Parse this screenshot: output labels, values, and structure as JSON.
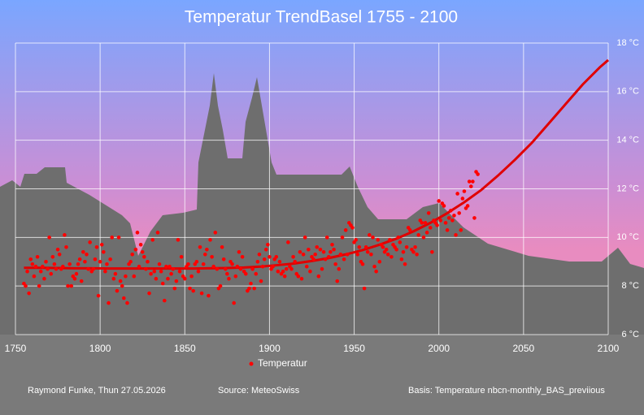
{
  "chart_data": {
    "type": "scatter",
    "title": "Temperatur  TrendBasel 1755 - 2100",
    "xlim": [
      1750,
      2100
    ],
    "xticks": [
      1750,
      1800,
      1850,
      1900,
      1950,
      2000,
      2050,
      2100
    ],
    "ylim": [
      6,
      18
    ],
    "yticks": [
      {
        "value": 6,
        "label": "6 °C"
      },
      {
        "value": 8,
        "label": "8 °C"
      },
      {
        "value": 10,
        "label": "10 °C"
      },
      {
        "value": 12,
        "label": "12 °C"
      },
      {
        "value": 14,
        "label": "14 °C"
      },
      {
        "value": 16,
        "label": "16 °C"
      },
      {
        "value": 18,
        "label": "18 °C"
      }
    ],
    "grid": true,
    "series": [
      {
        "name": "Temperatur",
        "color": "#ff0000",
        "x": [
          1755,
          1756,
          1757,
          1758,
          1759,
          1760,
          1761,
          1762,
          1763,
          1764,
          1765,
          1766,
          1767,
          1768,
          1769,
          1770,
          1771,
          1772,
          1773,
          1774,
          1775,
          1776,
          1777,
          1778,
          1779,
          1780,
          1781,
          1782,
          1783,
          1784,
          1785,
          1786,
          1787,
          1788,
          1789,
          1790,
          1791,
          1792,
          1793,
          1794,
          1795,
          1796,
          1797,
          1798,
          1799,
          1800,
          1801,
          1802,
          1803,
          1804,
          1805,
          1806,
          1807,
          1808,
          1809,
          1810,
          1811,
          1812,
          1813,
          1814,
          1815,
          1816,
          1817,
          1818,
          1819,
          1820,
          1821,
          1822,
          1823,
          1824,
          1825,
          1826,
          1827,
          1828,
          1829,
          1830,
          1831,
          1832,
          1833,
          1834,
          1835,
          1836,
          1837,
          1838,
          1839,
          1840,
          1841,
          1842,
          1843,
          1844,
          1845,
          1846,
          1847,
          1848,
          1849,
          1850,
          1851,
          1852,
          1853,
          1854,
          1855,
          1856,
          1857,
          1858,
          1859,
          1860,
          1861,
          1862,
          1863,
          1864,
          1865,
          1866,
          1867,
          1868,
          1869,
          1870,
          1871,
          1872,
          1873,
          1874,
          1875,
          1876,
          1877,
          1878,
          1879,
          1880,
          1881,
          1882,
          1883,
          1884,
          1885,
          1886,
          1887,
          1888,
          1889,
          1890,
          1891,
          1892,
          1893,
          1894,
          1895,
          1896,
          1897,
          1898,
          1899,
          1900,
          1901,
          1902,
          1903,
          1904,
          1905,
          1906,
          1907,
          1908,
          1909,
          1910,
          1911,
          1912,
          1913,
          1914,
          1915,
          1916,
          1917,
          1918,
          1919,
          1920,
          1921,
          1922,
          1923,
          1924,
          1925,
          1926,
          1927,
          1928,
          1929,
          1930,
          1931,
          1932,
          1933,
          1934,
          1935,
          1936,
          1937,
          1938,
          1939,
          1940,
          1941,
          1942,
          1943,
          1944,
          1945,
          1946,
          1947,
          1948,
          1949,
          1950,
          1951,
          1952,
          1953,
          1954,
          1955,
          1956,
          1957,
          1958,
          1959,
          1960,
          1961,
          1962,
          1963,
          1964,
          1965,
          1966,
          1967,
          1968,
          1969,
          1970,
          1971,
          1972,
          1973,
          1974,
          1975,
          1976,
          1977,
          1978,
          1979,
          1980,
          1981,
          1982,
          1983,
          1984,
          1985,
          1986,
          1987,
          1988,
          1989,
          1990,
          1991,
          1992,
          1993,
          1994,
          1995,
          1996,
          1997,
          1998,
          1999,
          2000,
          2001,
          2002,
          2003,
          2004,
          2005,
          2006,
          2007,
          2008,
          2009,
          2010,
          2011,
          2012,
          2013,
          2014,
          2015,
          2016,
          2017,
          2018,
          2019,
          2020,
          2021,
          2022,
          2023
        ],
        "values": [
          8.1,
          8.0,
          8.6,
          7.7,
          9.1,
          8.9,
          8.4,
          8.8,
          9.2,
          8.0,
          8.6,
          8.8,
          8.3,
          9.0,
          8.7,
          10.0,
          8.5,
          9.2,
          8.9,
          8.7,
          9.5,
          9.3,
          8.7,
          8.8,
          10.1,
          9.6,
          8.0,
          8.9,
          8.0,
          8.4,
          8.3,
          8.5,
          8.9,
          9.1,
          8.2,
          9.4,
          9.0,
          9.3,
          8.7,
          9.8,
          8.6,
          8.7,
          9.1,
          9.6,
          7.6,
          9.0,
          9.7,
          9.4,
          8.6,
          8.9,
          7.3,
          9.1,
          10.0,
          8.3,
          8.5,
          7.8,
          10.0,
          8.2,
          8.0,
          7.5,
          8.4,
          7.3,
          8.9,
          9.0,
          9.3,
          8.4,
          9.5,
          10.2,
          8.8,
          9.7,
          9.4,
          9.2,
          8.7,
          9.0,
          7.7,
          8.5,
          9.9,
          8.6,
          8.3,
          10.2,
          8.9,
          8.6,
          8.1,
          7.4,
          8.8,
          8.3,
          8.8,
          8.5,
          8.7,
          7.9,
          8.2,
          9.9,
          8.6,
          9.2,
          8.4,
          8.3,
          8.8,
          8.9,
          7.9,
          8.4,
          7.8,
          8.9,
          9.0,
          8.6,
          9.6,
          7.7,
          8.9,
          9.3,
          9.5,
          7.6,
          9.9,
          9.2,
          8.8,
          10.2,
          8.7,
          7.9,
          8.0,
          9.6,
          9.1,
          8.7,
          8.5,
          8.3,
          9.0,
          8.9,
          7.3,
          8.4,
          8.8,
          9.4,
          8.7,
          9.2,
          8.6,
          8.5,
          7.8,
          7.9,
          8.1,
          8.7,
          7.9,
          8.5,
          9.0,
          9.3,
          8.2,
          8.8,
          9.1,
          9.5,
          9.7,
          9.2,
          8.7,
          8.8,
          9.1,
          9.2,
          8.6,
          9.0,
          8.5,
          8.6,
          8.4,
          8.7,
          9.8,
          8.8,
          8.7,
          9.2,
          9.0,
          8.5,
          8.4,
          9.4,
          8.3,
          9.3,
          10.0,
          8.8,
          9.5,
          8.6,
          9.2,
          9.1,
          9.3,
          9.6,
          8.4,
          9.5,
          8.7,
          9.4,
          9.1,
          10.0,
          9.2,
          9.4,
          9.7,
          9.5,
          8.9,
          8.2,
          8.7,
          9.3,
          10.0,
          9.1,
          10.3,
          9.3,
          10.6,
          10.5,
          10.4,
          9.8,
          9.9,
          9.3,
          9.6,
          9.0,
          8.9,
          7.9,
          9.6,
          9.4,
          10.1,
          9.3,
          10.0,
          8.8,
          8.6,
          9.9,
          9.0,
          9.7,
          9.6,
          9.4,
          9.5,
          9.3,
          9.9,
          9.2,
          9.7,
          9.6,
          9.5,
          10.0,
          9.8,
          9.1,
          9.4,
          8.9,
          9.6,
          10.4,
          10.3,
          9.5,
          9.4,
          9.6,
          9.3,
          10.1,
          10.7,
          10.6,
          10.0,
          10.6,
          10.2,
          11.0,
          10.4,
          9.4,
          10.7,
          10.6,
          10.5,
          11.5,
          10.7,
          11.4,
          11.3,
          10.6,
          10.3,
          10.8,
          11.1,
          10.7,
          10.9,
          10.1,
          11.8,
          11.0,
          10.3,
          11.6,
          11.9,
          11.2,
          11.3,
          12.3,
          12.1,
          12.3,
          10.8,
          12.7,
          12.6
        ]
      }
    ],
    "trend": {
      "color": "#e00000",
      "x": [
        1755,
        1765,
        1775,
        1785,
        1795,
        1805,
        1815,
        1825,
        1835,
        1845,
        1855,
        1865,
        1875,
        1885,
        1895,
        1905,
        1915,
        1925,
        1935,
        1945,
        1955,
        1965,
        1975,
        1985,
        1995,
        2005,
        2015,
        2025,
        2035,
        2045,
        2055,
        2065,
        2075,
        2085,
        2095,
        2100
      ],
      "values": [
        8.75,
        8.75,
        8.74,
        8.73,
        8.73,
        8.72,
        8.72,
        8.72,
        8.72,
        8.72,
        8.72,
        8.73,
        8.74,
        8.76,
        8.8,
        8.86,
        8.93,
        9.03,
        9.15,
        9.3,
        9.48,
        9.7,
        9.95,
        10.25,
        10.6,
        11.0,
        11.45,
        11.95,
        12.55,
        13.2,
        13.9,
        14.7,
        15.5,
        16.3,
        17.0,
        17.3
      ]
    },
    "footer": {
      "author": "Raymond Funke, Thun 27.05.2026",
      "source": "Source: MeteoSwiss",
      "basis": "Basis:  Temperature nbcn-monthly_BAS_previious"
    }
  }
}
